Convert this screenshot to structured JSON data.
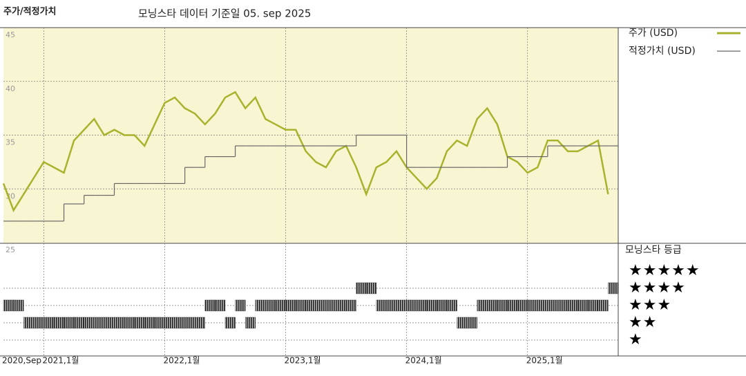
{
  "chart_data": [
    {
      "type": "line",
      "title": "주가/적정가치",
      "subtitle": "모닝스타 데이터 기준일 05. sep 2025",
      "x": [
        "2020-09",
        "2020-10",
        "2020-11",
        "2020-12",
        "2021-01",
        "2021-02",
        "2021-03",
        "2021-04",
        "2021-05",
        "2021-06",
        "2021-07",
        "2021-08",
        "2021-09",
        "2021-10",
        "2021-11",
        "2021-12",
        "2022-01",
        "2022-02",
        "2022-03",
        "2022-04",
        "2022-05",
        "2022-06",
        "2022-07",
        "2022-08",
        "2022-09",
        "2022-10",
        "2022-11",
        "2022-12",
        "2023-01",
        "2023-02",
        "2023-03",
        "2023-04",
        "2023-05",
        "2023-06",
        "2023-07",
        "2023-08",
        "2023-09",
        "2023-10",
        "2023-11",
        "2023-12",
        "2024-01",
        "2024-02",
        "2024-03",
        "2024-04",
        "2024-05",
        "2024-06",
        "2024-07",
        "2024-08",
        "2024-09",
        "2024-10",
        "2024-11",
        "2024-12",
        "2025-01",
        "2025-02",
        "2025-03",
        "2025-04",
        "2025-05",
        "2025-06",
        "2025-07",
        "2025-08",
        "2025-09"
      ],
      "series": [
        {
          "name": "주가 (USD)",
          "color": "#a9b22c",
          "style": "line",
          "values": [
            30.5,
            28,
            29.5,
            31,
            32.5,
            32,
            31.5,
            34.5,
            35.5,
            36.5,
            35,
            35.5,
            35,
            35,
            34,
            36,
            38,
            38.5,
            37.5,
            37,
            36,
            37,
            38.5,
            39,
            37.5,
            38.5,
            36.5,
            36,
            35.5,
            35.5,
            33.5,
            32.5,
            32,
            33.5,
            34,
            32,
            29.5,
            32,
            32.5,
            33.5,
            32,
            31,
            30,
            31,
            33.5,
            34.5,
            34,
            36.5,
            37.5,
            36,
            33,
            32.5,
            31.5,
            32,
            34.5,
            34.5,
            33.5,
            33.5,
            34,
            34.5,
            29.5
          ]
        },
        {
          "name": "적정가치 (USD)",
          "color": "#666666",
          "style": "step",
          "values": [
            27,
            27,
            27,
            27,
            27,
            27,
            28.6,
            28.6,
            29.4,
            29.4,
            29.4,
            30.5,
            30.5,
            30.5,
            30.5,
            30.5,
            30.5,
            30.5,
            32,
            32,
            33,
            33,
            33,
            34,
            34,
            34,
            34,
            34,
            34,
            34,
            34,
            34,
            34,
            34,
            34,
            35,
            35,
            35,
            35,
            35,
            32,
            32,
            32,
            32,
            32,
            32,
            32,
            32,
            32,
            32,
            33,
            33,
            33,
            33,
            34,
            34,
            34,
            34,
            34,
            34,
            34
          ]
        }
      ],
      "xlim": [
        "2020-09",
        "2025-10"
      ],
      "xticks": [
        {
          "value": "2020-09",
          "label": "2020,Sep"
        },
        {
          "value": "2021-01",
          "label": "2021,1월"
        },
        {
          "value": "2022-01",
          "label": "2022,1월"
        },
        {
          "value": "2023-01",
          "label": "2023,1월"
        },
        {
          "value": "2024-01",
          "label": "2024,1월"
        },
        {
          "value": "2025-01",
          "label": "2025,1월"
        }
      ],
      "ylim": [
        25,
        45
      ],
      "yticks": [
        25,
        30,
        35,
        40,
        45
      ],
      "grid": true
    },
    {
      "type": "rating",
      "title": "모닝스타 등급",
      "color": "#333333",
      "x": [
        "2020-09",
        "2020-10",
        "2020-11",
        "2020-12",
        "2021-01",
        "2021-02",
        "2021-03",
        "2021-04",
        "2021-05",
        "2021-06",
        "2021-07",
        "2021-08",
        "2021-09",
        "2021-10",
        "2021-11",
        "2021-12",
        "2022-01",
        "2022-02",
        "2022-03",
        "2022-04",
        "2022-05",
        "2022-06",
        "2022-07",
        "2022-08",
        "2022-09",
        "2022-10",
        "2022-11",
        "2022-12",
        "2023-01",
        "2023-02",
        "2023-03",
        "2023-04",
        "2023-05",
        "2023-06",
        "2023-07",
        "2023-08",
        "2023-09",
        "2023-10",
        "2023-11",
        "2023-12",
        "2024-01",
        "2024-02",
        "2024-03",
        "2024-04",
        "2024-05",
        "2024-06",
        "2024-07",
        "2024-08",
        "2024-09",
        "2024-10",
        "2024-11",
        "2024-12",
        "2025-01",
        "2025-02",
        "2025-03",
        "2025-04",
        "2025-05",
        "2025-06",
        "2025-07",
        "2025-08",
        "2025-09"
      ],
      "values": [
        3,
        3,
        2,
        2,
        2,
        2,
        2,
        2,
        2,
        2,
        2,
        2,
        2,
        2,
        2,
        2,
        2,
        2,
        2,
        2,
        3,
        3,
        2,
        3,
        2,
        3,
        3,
        3,
        3,
        3,
        3,
        3,
        3,
        3,
        3,
        4,
        4,
        3,
        3,
        3,
        3,
        3,
        3,
        3,
        3,
        2,
        2,
        3,
        3,
        3,
        3,
        3,
        3,
        3,
        3,
        3,
        3,
        3,
        3,
        3,
        4
      ],
      "rows": [
        {
          "value": 5,
          "label": "★★★★★"
        },
        {
          "value": 4,
          "label": "★★★★"
        },
        {
          "value": 3,
          "label": "★★★"
        },
        {
          "value": 2,
          "label": "★★"
        },
        {
          "value": 1,
          "label": "★"
        }
      ]
    }
  ]
}
